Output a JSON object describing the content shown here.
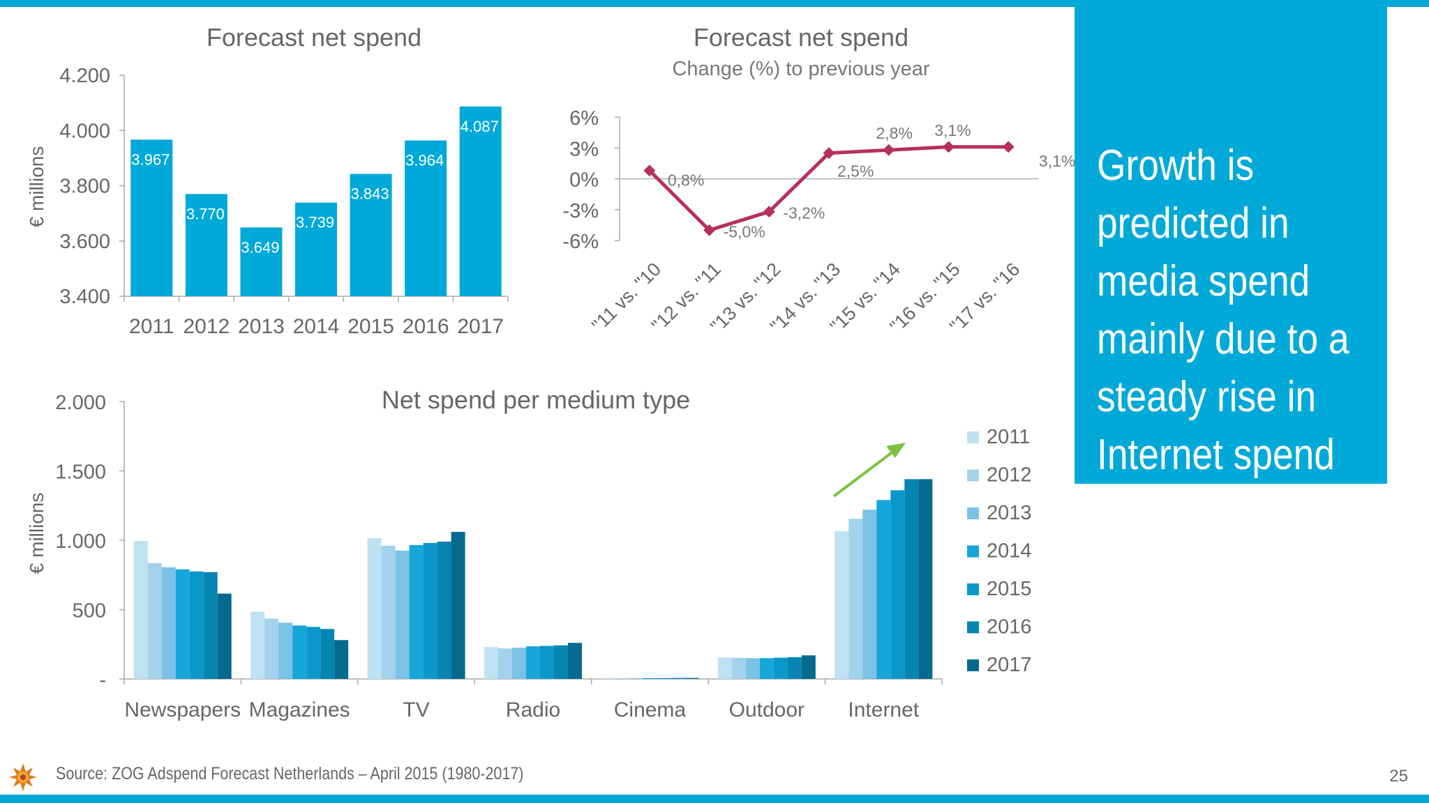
{
  "colors": {
    "accent": "#00a9d8",
    "line": "#b5305d",
    "arrow": "#7cc142",
    "year_shades": [
      "#bfe2f2",
      "#a3d2ec",
      "#7cc2e6",
      "#16a6d8",
      "#0a98cb",
      "#0685b2",
      "#056a8e"
    ]
  },
  "callout": {
    "text": "Growth is\npredicted in\nmedia spend\nmainly due to a\nsteady rise in\nInternet spend"
  },
  "footer": {
    "source": "Source: ZOG Adspend Forecast Netherlands – April 2015 (1980-2017)",
    "page_number": "25"
  },
  "chart_data": [
    {
      "type": "bar",
      "title": "Forecast net spend",
      "ylabel": "€ millions",
      "categories": [
        "2011",
        "2012",
        "2013",
        "2014",
        "2015",
        "2016",
        "2017"
      ],
      "values": [
        3967,
        3770,
        3649,
        3739,
        3843,
        3964,
        4087
      ],
      "data_labels": [
        "3.967",
        "3.770",
        "3.649",
        "3.739",
        "3.843",
        "3.964",
        "4.087"
      ],
      "ylim": [
        3400,
        4200
      ],
      "yticks": [
        3400,
        3600,
        3800,
        4000,
        4200
      ],
      "ytick_labels": [
        "3.400",
        "3.600",
        "3.800",
        "4.000",
        "4.200"
      ]
    },
    {
      "type": "line",
      "title": "Forecast net spend",
      "subtitle": "Change (%) to previous year",
      "categories": [
        "\"11 vs. \"10",
        "\"12 vs. \"11",
        "\"13 vs. \"12",
        "\"14 vs. \"13",
        "\"15 vs. \"14",
        "\"16 vs. \"15",
        "\"17 vs. \"16"
      ],
      "values": [
        0.8,
        -5.0,
        -3.2,
        2.5,
        2.8,
        3.1,
        3.1
      ],
      "data_labels": [
        "0,8%",
        "-5,0%",
        "-3,2%",
        "2,5%",
        "2,8%",
        "3,1%",
        "3,1%"
      ],
      "ylim": [
        -6,
        6
      ],
      "yticks": [
        -6,
        -3,
        0,
        3,
        6
      ],
      "ytick_labels": [
        "-6%",
        "-3%",
        "0%",
        "3%",
        "6%"
      ]
    },
    {
      "type": "bar",
      "title": "Net spend per medium type",
      "ylabel": "€ millions",
      "categories": [
        "Newspapers",
        "Magazines",
        "TV",
        "Radio",
        "Cinema",
        "Outdoor",
        "Internet"
      ],
      "series": [
        {
          "name": "2011",
          "values": [
            995,
            485,
            1015,
            230,
            5,
            155,
            1065
          ]
        },
        {
          "name": "2012",
          "values": [
            835,
            435,
            960,
            220,
            5,
            152,
            1155
          ]
        },
        {
          "name": "2013",
          "values": [
            805,
            405,
            925,
            225,
            5,
            150,
            1220
          ]
        },
        {
          "name": "2014",
          "values": [
            790,
            385,
            965,
            235,
            6,
            150,
            1290
          ]
        },
        {
          "name": "2015",
          "values": [
            775,
            375,
            980,
            238,
            6,
            153,
            1360
          ]
        },
        {
          "name": "2016",
          "values": [
            770,
            360,
            990,
            242,
            7,
            157,
            1440
          ]
        },
        {
          "name": "2017",
          "values": [
            615,
            280,
            1060,
            260,
            7,
            170,
            1440
          ]
        }
      ],
      "ylim": [
        0,
        2000
      ],
      "yticks": [
        0,
        500,
        1000,
        1500,
        2000
      ],
      "ytick_labels": [
        "-",
        "500",
        "1.000",
        "1.500",
        "2.000"
      ],
      "legend": "right"
    }
  ]
}
